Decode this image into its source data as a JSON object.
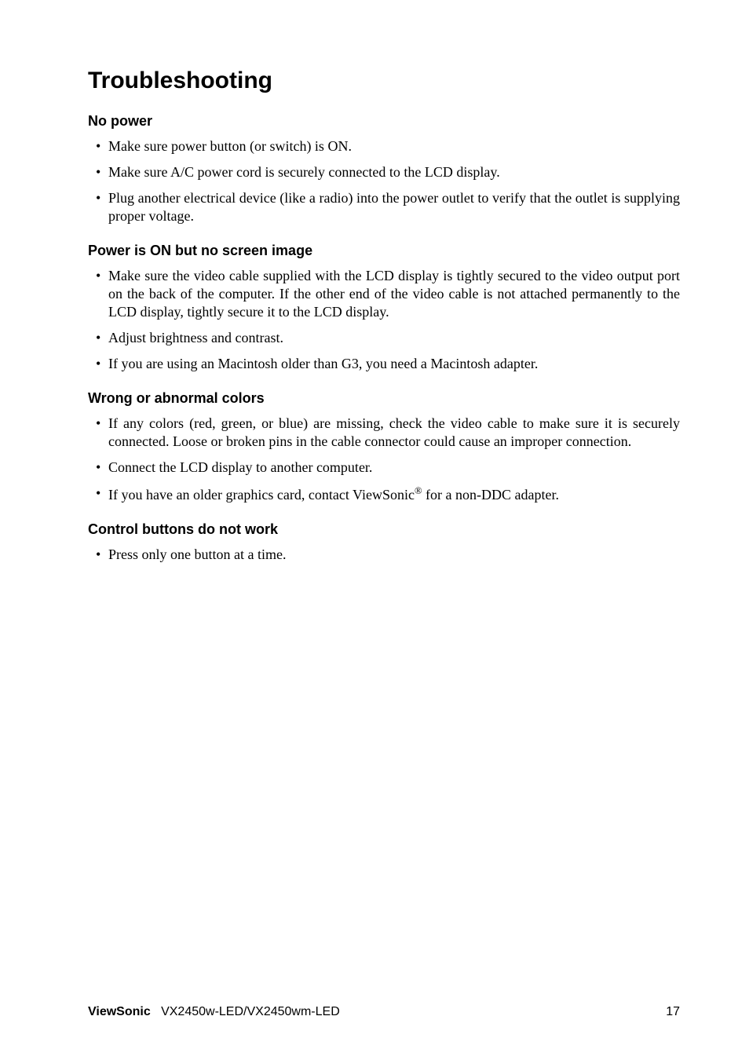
{
  "title": "Troubleshooting",
  "sections": [
    {
      "heading": "No power",
      "items": [
        "Make sure power button (or switch) is ON.",
        "Make sure A/C power cord is securely connected to the LCD display.",
        "Plug another electrical device (like a radio) into the power outlet to verify that the outlet is supplying proper voltage."
      ]
    },
    {
      "heading": "Power is ON but no screen image",
      "items": [
        "Make sure the video cable supplied with the LCD display is tightly secured to the video output port on the back of the computer. If the other end of the video cable is not attached permanently to the LCD display, tightly secure it to the LCD display.",
        "Adjust brightness and contrast.",
        "If you are using an Macintosh older than G3, you need a Macintosh adapter."
      ]
    },
    {
      "heading": "Wrong or abnormal colors",
      "items": [
        "If any colors (red, green, or blue) are missing, check the video cable to make sure it is securely connected. Loose or broken pins in the cable connector could cause an improper connection.",
        "Connect the LCD display to another computer.",
        "If you have an older graphics card, contact ViewSonic® for a non-DDC adapter."
      ]
    },
    {
      "heading": "Control buttons do not work",
      "items": [
        "Press only one button at a time."
      ]
    }
  ],
  "footer": {
    "brand": "ViewSonic",
    "model": "VX2450w-LED/VX2450wm-LED",
    "page": "17"
  }
}
